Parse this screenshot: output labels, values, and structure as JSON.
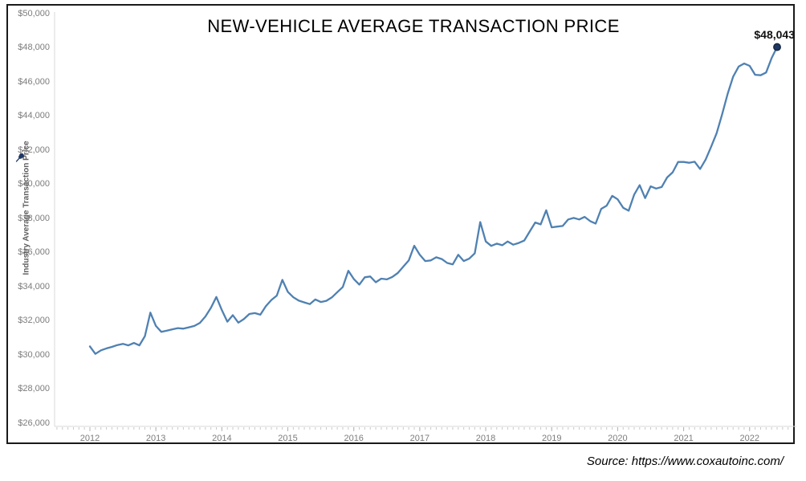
{
  "title": "NEW-VEHICLE AVERAGE TRANSACTION PRICE",
  "annotation": "$48,043",
  "source": "Source: https://www.coxautoinc.com/",
  "y_axis": {
    "label": "Industry Average Transaction Price",
    "ticks": [
      "$26,000",
      "$28,000",
      "$30,000",
      "$32,000",
      "$34,000",
      "$36,000",
      "$38,000",
      "$40,000",
      "$42,000",
      "$44,000",
      "$46,000",
      "$48,000",
      "$50,000"
    ]
  },
  "x_axis": {
    "ticks": [
      "2012",
      "2013",
      "2014",
      "2015",
      "2016",
      "2017",
      "2018",
      "2019",
      "2020",
      "2021",
      "2022"
    ]
  },
  "colors": {
    "line": "#4f81b2",
    "marker_fill": "#1f3864",
    "marker_stroke": "#16273f",
    "axis_line": "#d8d8d8",
    "month_tick": "#c9c9c9",
    "year_tick": "#b3b3b3",
    "tick_text": "#7c7c7c",
    "frame": "#1a1a1a"
  },
  "chart_data": {
    "type": "line",
    "title": "NEW-VEHICLE AVERAGE TRANSACTION PRICE",
    "xlabel": "",
    "ylabel": "Industry Average Transaction Price",
    "ylim": [
      26000,
      50000
    ],
    "y_tick_step": 2000,
    "x_start": "2012-01",
    "x_end": "2022-06",
    "frequency": "monthly",
    "grid": false,
    "legend": false,
    "annotation": {
      "text": "$48,043",
      "x": "2022-06",
      "y": 48043
    },
    "source": "https://www.coxautoinc.com/",
    "series": [
      {
        "name": "Industry Average Transaction Price",
        "values": [
          30500,
          30060,
          30270,
          30380,
          30470,
          30580,
          30650,
          30560,
          30700,
          30560,
          31100,
          32480,
          31700,
          31350,
          31420,
          31500,
          31570,
          31540,
          31620,
          31700,
          31880,
          32250,
          32760,
          33400,
          32620,
          31950,
          32330,
          31890,
          32100,
          32400,
          32450,
          32360,
          32850,
          33220,
          33480,
          34400,
          33700,
          33380,
          33180,
          33080,
          32980,
          33250,
          33100,
          33170,
          33370,
          33680,
          33980,
          34930,
          34450,
          34120,
          34550,
          34600,
          34260,
          34470,
          34430,
          34570,
          34800,
          35170,
          35540,
          36400,
          35870,
          35500,
          35540,
          35720,
          35620,
          35390,
          35310,
          35870,
          35500,
          35640,
          35960,
          37790,
          36650,
          36390,
          36520,
          36430,
          36650,
          36460,
          36560,
          36700,
          37230,
          37760,
          37650,
          38480,
          37480,
          37520,
          37560,
          37940,
          38030,
          37940,
          38090,
          37840,
          37700,
          38560,
          38750,
          39320,
          39120,
          38620,
          38450,
          39400,
          39950,
          39190,
          39880,
          39750,
          39840,
          40400,
          40700,
          41310,
          41310,
          41260,
          41320,
          40900,
          41450,
          42200,
          43000,
          44100,
          45300,
          46300,
          46900,
          47077,
          46940,
          46420,
          46390,
          46550,
          47400,
          48043
        ]
      }
    ]
  }
}
